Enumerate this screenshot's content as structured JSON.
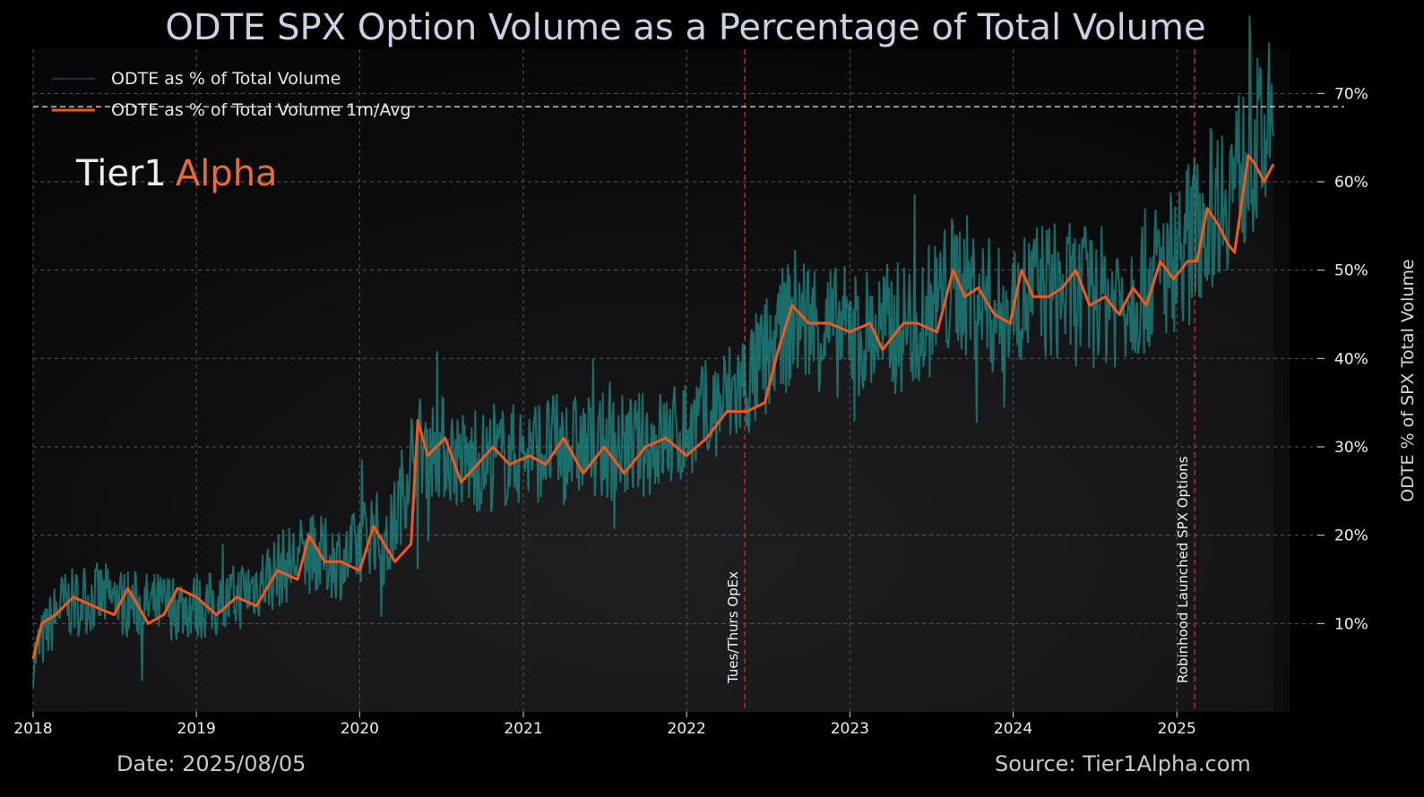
{
  "chart_data": {
    "type": "line",
    "title": "ODTE SPX Option Volume as a Percentage of Total Volume",
    "ylabel": "ODTE % of SPX Total Volume",
    "ylim": [
      0,
      75
    ],
    "yticks": [
      10,
      20,
      30,
      40,
      50,
      60,
      70
    ],
    "ytick_labels": [
      "10%",
      "20%",
      "30%",
      "40%",
      "50%",
      "60%",
      "70%"
    ],
    "xlim": [
      "2018-01-01",
      "2025-08-05"
    ],
    "xtick_labels": [
      "2018",
      "2019",
      "2020",
      "2021",
      "2022",
      "2023",
      "2024",
      "2025"
    ],
    "y_axis_side": "right",
    "grid": true,
    "legend_position": "top-left",
    "reference_line": {
      "y": 68.5,
      "style": "dashed"
    },
    "series": [
      {
        "name": "ODTE as % of Total Volume",
        "color": "#1fa8a4",
        "style": "noisy-daily",
        "x": [
          "2018-01",
          "2018-03",
          "2018-06",
          "2018-09",
          "2018-12",
          "2019-03",
          "2019-06",
          "2019-09",
          "2019-12",
          "2020-02",
          "2020-03",
          "2020-05",
          "2020-07",
          "2020-09",
          "2020-12",
          "2021-03",
          "2021-06",
          "2021-09",
          "2021-12",
          "2022-03",
          "2022-06",
          "2022-09",
          "2022-12",
          "2023-03",
          "2023-06",
          "2023-09",
          "2023-12",
          "2024-03",
          "2024-06",
          "2024-09",
          "2024-12",
          "2025-03",
          "2025-06",
          "2025-08"
        ],
        "values": [
          6,
          12,
          13,
          12,
          12,
          12,
          15,
          18,
          17,
          21,
          18,
          30,
          30,
          28,
          29,
          30,
          30,
          30,
          31,
          34,
          38,
          45,
          43,
          43,
          44,
          49,
          45,
          48,
          47,
          47,
          50,
          56,
          62,
          66
        ]
      },
      {
        "name": "ODTE as % of Total Volume 1m/Avg",
        "color": "#f0581e",
        "x": [
          "2018-01-01",
          "2018-01-20",
          "2018-02-20",
          "2018-04-01",
          "2018-05-15",
          "2018-07-01",
          "2018-08-01",
          "2018-09-15",
          "2018-10-20",
          "2018-11-20",
          "2019-01-01",
          "2019-02-15",
          "2019-04-01",
          "2019-05-15",
          "2019-07-01",
          "2019-08-15",
          "2019-09-10",
          "2019-10-15",
          "2019-11-20",
          "2020-01-01",
          "2020-02-01",
          "2020-02-25",
          "2020-03-20",
          "2020-04-25",
          "2020-05-10",
          "2020-06-01",
          "2020-07-10",
          "2020-08-15",
          "2020-09-20",
          "2020-10-25",
          "2020-12-01",
          "2021-01-15",
          "2021-02-20",
          "2021-04-01",
          "2021-05-15",
          "2021-07-01",
          "2021-08-15",
          "2021-10-01",
          "2021-11-15",
          "2022-01-01",
          "2022-02-15",
          "2022-04-01",
          "2022-05-15",
          "2022-06-25",
          "2022-07-25",
          "2022-08-25",
          "2022-10-01",
          "2022-11-15",
          "2023-01-01",
          "2023-02-15",
          "2023-03-15",
          "2023-05-01",
          "2023-06-01",
          "2023-07-15",
          "2023-08-20",
          "2023-09-15",
          "2023-10-15",
          "2023-11-20",
          "2023-12-25",
          "2024-01-20",
          "2024-02-15",
          "2024-03-20",
          "2024-04-20",
          "2024-05-20",
          "2024-06-20",
          "2024-07-25",
          "2024-08-25",
          "2024-09-25",
          "2024-10-25",
          "2024-11-25",
          "2024-12-25",
          "2025-01-25",
          "2025-02-15",
          "2025-03-10",
          "2025-04-05",
          "2025-04-25",
          "2025-05-10",
          "2025-06-10",
          "2025-06-25",
          "2025-07-15",
          "2025-08-05"
        ],
        "values": [
          6,
          10,
          11,
          13,
          12,
          11,
          14,
          10,
          11,
          14,
          13,
          11,
          13,
          12,
          16,
          15,
          20,
          17,
          17,
          16,
          21,
          19,
          17,
          19,
          33,
          29,
          31,
          26,
          28,
          30,
          28,
          29,
          28,
          31,
          27,
          30,
          27,
          30,
          31,
          29,
          31,
          34,
          34,
          35,
          41,
          46,
          44,
          44,
          43,
          44,
          41,
          44,
          44,
          43,
          50,
          47,
          48,
          45,
          44,
          50,
          47,
          47,
          48,
          50,
          46,
          47,
          45,
          48,
          46,
          51,
          49,
          51,
          51,
          57,
          55,
          53,
          52,
          63,
          62,
          60,
          62
        ]
      }
    ],
    "annotations": [
      {
        "x": "2022-05-11",
        "text": "Tues/Thurs OpEx"
      },
      {
        "x": "2025-02-10",
        "text": "Robinhood Launched SPX Options"
      }
    ]
  },
  "brand": {
    "part1": "Tier1",
    "part2": "Alpha"
  },
  "footer": {
    "date": "Date: 2025/08/05",
    "source": "Source: Tier1Alpha.com"
  },
  "colors": {
    "background": "#000000",
    "accent": "#ea6a35",
    "teal": "#1fa8a4",
    "orange": "#f0581e",
    "annotation": "#d02020"
  }
}
